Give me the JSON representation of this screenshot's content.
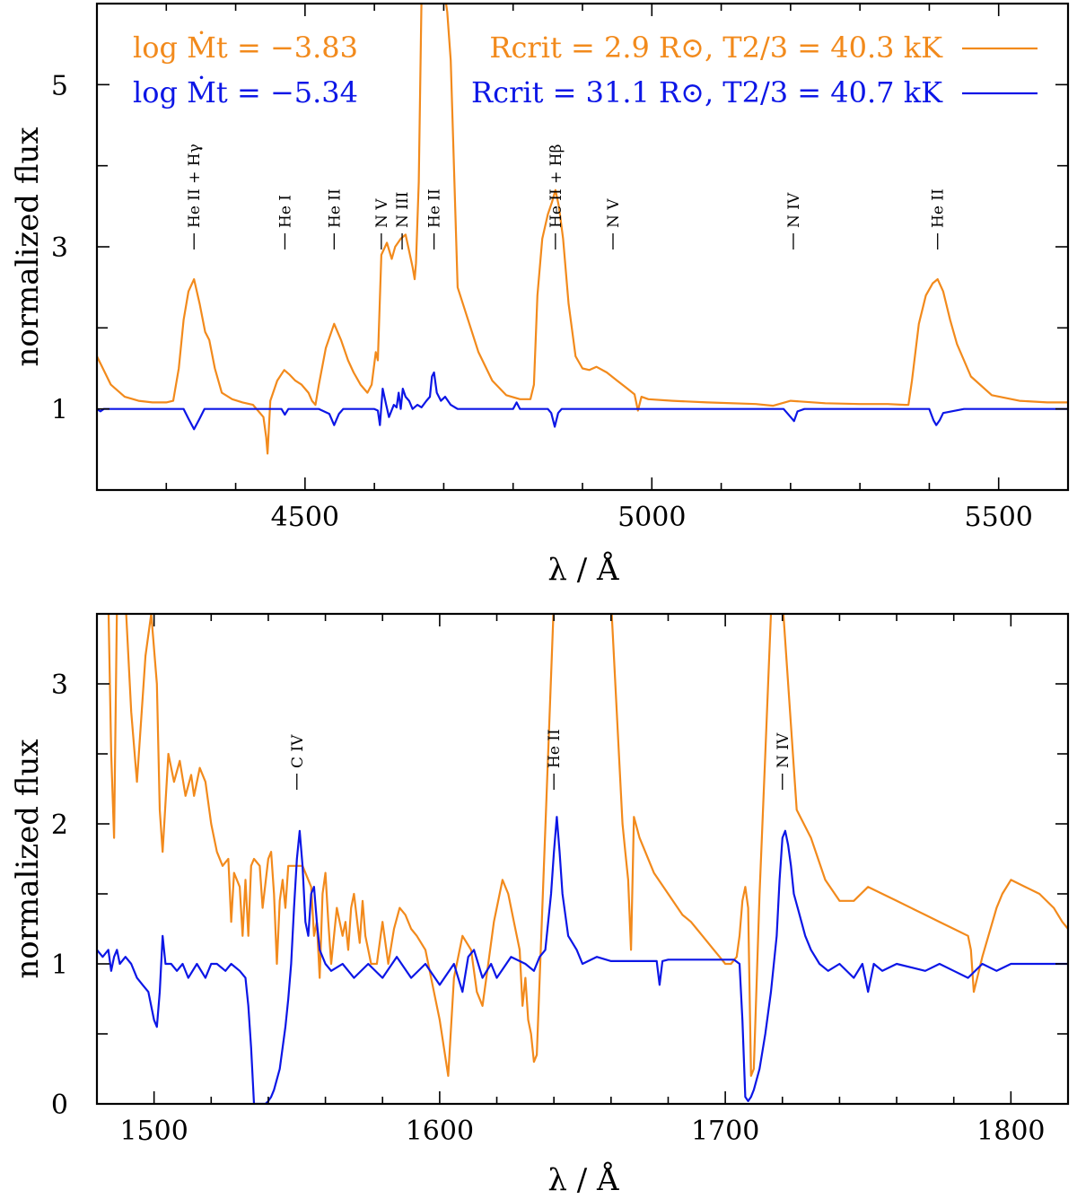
{
  "colors": {
    "orange": "#f28a1c",
    "blue": "#0c16e6",
    "axis": "#000000"
  },
  "chart_data": [
    {
      "type": "line",
      "xlabel": "λ / Å",
      "ylabel": "normalized flux",
      "xlim": [
        4200,
        5600
      ],
      "ylim": [
        0,
        6
      ],
      "xticks": [
        4500,
        5000,
        5500
      ],
      "yticks_labeled": [
        1,
        3,
        5
      ],
      "legend": {
        "lines": [
          {
            "left": "log Ṁt = −3.83",
            "right": "Rcrit = 2.9 R⊙, T2/3 = 40.3 kK",
            "color": "orange"
          },
          {
            "left": "log Ṁt = −5.34",
            "right": "Rcrit = 31.1 R⊙, T2/3 = 40.7 kK",
            "color": "blue"
          }
        ]
      },
      "line_ids": [
        {
          "label": "He II + Hγ",
          "wavelength": 4340
        },
        {
          "label": "He I",
          "wavelength": 4471
        },
        {
          "label": "He II",
          "wavelength": 4542
        },
        {
          "label": "N V",
          "wavelength": 4610
        },
        {
          "label": "N III",
          "wavelength": 4640
        },
        {
          "label": "He II",
          "wavelength": 4686
        },
        {
          "label": "He II + Hβ",
          "wavelength": 4861
        },
        {
          "label": "N V",
          "wavelength": 4944
        },
        {
          "label": "N IV",
          "wavelength": 5204
        },
        {
          "label": "He II",
          "wavelength": 5412
        }
      ],
      "series": [
        {
          "name": "log Ṁt = −3.83",
          "color": "orange",
          "x": [
            4200,
            4220,
            4240,
            4260,
            4280,
            4300,
            4310,
            4318,
            4325,
            4332,
            4340,
            4348,
            4356,
            4362,
            4370,
            4380,
            4395,
            4410,
            4425,
            4440,
            4444,
            4446,
            4450,
            4460,
            4470,
            4478,
            4486,
            4495,
            4505,
            4510,
            4515,
            4520,
            4530,
            4542,
            4552,
            4562,
            4570,
            4580,
            4590,
            4596,
            4602,
            4605,
            4610,
            4618,
            4625,
            4630,
            4638,
            4645,
            4650,
            4655,
            4658,
            4660,
            4664,
            4668,
            4672,
            4675,
            4680,
            4686,
            4692,
            4700,
            4705,
            4710,
            4720,
            4735,
            4750,
            4770,
            4790,
            4810,
            4825,
            4830,
            4835,
            4842,
            4850,
            4856,
            4861,
            4866,
            4872,
            4880,
            4890,
            4900,
            4910,
            4920,
            4935,
            4950,
            4965,
            4975,
            4980,
            4985,
            4995,
            5030,
            5080,
            5150,
            5175,
            5200,
            5250,
            5300,
            5340,
            5365,
            5370,
            5375,
            5385,
            5395,
            5405,
            5412,
            5420,
            5430,
            5440,
            5460,
            5490,
            5530,
            5570,
            5600
          ],
          "values": [
            1.65,
            1.3,
            1.15,
            1.1,
            1.08,
            1.08,
            1.1,
            1.5,
            2.1,
            2.45,
            2.6,
            2.3,
            1.95,
            1.85,
            1.5,
            1.2,
            1.12,
            1.08,
            1.05,
            0.9,
            0.65,
            0.45,
            1.1,
            1.35,
            1.48,
            1.42,
            1.35,
            1.3,
            1.2,
            1.1,
            1.05,
            1.3,
            1.75,
            2.05,
            1.85,
            1.6,
            1.45,
            1.3,
            1.2,
            1.3,
            1.7,
            1.6,
            2.9,
            3.05,
            2.85,
            3.0,
            3.1,
            3.15,
            2.95,
            2.75,
            2.6,
            2.8,
            3.8,
            6.1,
            6.2,
            6.2,
            6.2,
            6.2,
            6.2,
            6.2,
            5.9,
            5.3,
            2.5,
            2.1,
            1.7,
            1.35,
            1.17,
            1.12,
            1.12,
            1.3,
            2.4,
            3.1,
            3.4,
            3.55,
            3.7,
            3.5,
            3.1,
            2.3,
            1.65,
            1.5,
            1.48,
            1.52,
            1.45,
            1.35,
            1.25,
            1.18,
            0.98,
            1.15,
            1.12,
            1.1,
            1.08,
            1.06,
            1.04,
            1.1,
            1.07,
            1.06,
            1.06,
            1.05,
            1.05,
            1.35,
            2.05,
            2.4,
            2.55,
            2.6,
            2.45,
            2.1,
            1.8,
            1.4,
            1.17,
            1.1,
            1.08,
            1.08
          ]
        },
        {
          "name": "log Ṁt = −5.34",
          "color": "blue",
          "x": [
            4200,
            4205,
            4210,
            4300,
            4325,
            4332,
            4340,
            4348,
            4355,
            4440,
            4466,
            4471,
            4476,
            4490,
            4520,
            4535,
            4542,
            4549,
            4555,
            4590,
            4600,
            4605,
            4608,
            4612,
            4617,
            4621,
            4628,
            4632,
            4635,
            4638,
            4641,
            4645,
            4650,
            4655,
            4662,
            4668,
            4675,
            4680,
            4683,
            4686,
            4690,
            4696,
            4702,
            4710,
            4720,
            4800,
            4805,
            4810,
            4815,
            4850,
            4855,
            4860,
            4865,
            4870,
            4950,
            5190,
            5200,
            5205,
            5210,
            5220,
            5400,
            5406,
            5410,
            5415,
            5420,
            5450,
            5600
          ],
          "values": [
            1.0,
            0.97,
            1.0,
            1.0,
            1.0,
            0.88,
            0.75,
            0.88,
            1.0,
            1.0,
            1.0,
            0.93,
            1.0,
            1.0,
            1.0,
            0.94,
            0.8,
            0.94,
            1.0,
            1.0,
            1.0,
            0.98,
            0.8,
            1.25,
            1.05,
            0.9,
            1.05,
            1.02,
            1.2,
            1.0,
            1.25,
            1.15,
            1.1,
            1.0,
            1.05,
            1.02,
            1.1,
            1.15,
            1.4,
            1.45,
            1.2,
            1.1,
            1.15,
            1.05,
            1.0,
            1.0,
            1.08,
            1.0,
            1.0,
            1.0,
            0.95,
            0.78,
            0.95,
            1.0,
            1.0,
            1.0,
            0.9,
            0.85,
            0.97,
            1.0,
            1.0,
            0.86,
            0.8,
            0.86,
            0.95,
            1.0,
            1.0
          ]
        }
      ]
    },
    {
      "type": "line",
      "xlabel": "λ / Å",
      "ylabel": "normalized flux",
      "xlim": [
        1480,
        1820
      ],
      "ylim": [
        0,
        3.5
      ],
      "xticks": [
        1500,
        1600,
        1700,
        1800
      ],
      "yticks_labeled": [
        0,
        1,
        2,
        3
      ],
      "line_ids": [
        {
          "label": "C IV",
          "wavelength": 1550
        },
        {
          "label": "He II",
          "wavelength": 1640
        },
        {
          "label": "N IV",
          "wavelength": 1720
        }
      ],
      "series": [
        {
          "name": "log Ṁt = −3.83",
          "color": "orange",
          "x": [
            1480,
            1484,
            1485,
            1486,
            1487,
            1488,
            1490,
            1492,
            1494,
            1497,
            1499,
            1501,
            1502,
            1503,
            1505,
            1507,
            1509,
            1511,
            1513,
            1514,
            1516,
            1518,
            1520,
            1522,
            1524,
            1526,
            1527,
            1528,
            1530,
            1531,
            1532,
            1533,
            1534,
            1535,
            1537,
            1538,
            1540,
            1541,
            1542,
            1543,
            1544,
            1545,
            1546,
            1547,
            1552,
            1555,
            1556,
            1557,
            1558,
            1559,
            1560,
            1561,
            1562,
            1564,
            1566,
            1567,
            1568,
            1569,
            1570,
            1572,
            1573,
            1574,
            1576,
            1578,
            1580,
            1582,
            1584,
            1586,
            1588,
            1590,
            1592,
            1595,
            1598,
            1600,
            1603,
            1605,
            1608,
            1611,
            1613,
            1615,
            1617,
            1619,
            1620,
            1622,
            1624,
            1626,
            1628,
            1629,
            1630,
            1631,
            1632,
            1633,
            1634,
            1640,
            1660,
            1664,
            1665,
            1666,
            1667,
            1668,
            1670,
            1675,
            1680,
            1685,
            1688,
            1690,
            1692,
            1694,
            1696,
            1698,
            1700,
            1702,
            1704,
            1705,
            1706,
            1707,
            1708,
            1709,
            1710,
            1712,
            1714,
            1716,
            1720,
            1725,
            1730,
            1735,
            1740,
            1745,
            1750,
            1760,
            1770,
            1775,
            1780,
            1785,
            1786,
            1787,
            1790,
            1795,
            1797,
            1800,
            1805,
            1810,
            1815,
            1818,
            1820
          ],
          "values": [
            3.6,
            3.6,
            2.5,
            1.9,
            3.55,
            3.6,
            3.6,
            2.8,
            2.3,
            3.2,
            3.5,
            3.0,
            2.1,
            1.8,
            2.5,
            2.3,
            2.45,
            2.2,
            2.35,
            2.2,
            2.4,
            2.3,
            2.0,
            1.8,
            1.7,
            1.75,
            1.3,
            1.65,
            1.55,
            1.2,
            1.6,
            1.2,
            1.7,
            1.75,
            1.7,
            1.4,
            1.75,
            1.8,
            1.5,
            1.0,
            1.45,
            1.6,
            1.4,
            1.7,
            1.7,
            1.55,
            1.2,
            1.3,
            0.9,
            1.5,
            1.65,
            1.3,
            1.0,
            1.4,
            1.2,
            1.3,
            1.1,
            1.4,
            1.5,
            1.15,
            1.45,
            1.2,
            1.0,
            1.0,
            1.3,
            1.0,
            1.25,
            1.4,
            1.35,
            1.25,
            1.2,
            1.1,
            0.8,
            0.6,
            0.2,
            0.9,
            1.2,
            1.1,
            0.8,
            0.7,
            1.0,
            1.3,
            1.4,
            1.6,
            1.5,
            1.3,
            1.1,
            0.7,
            0.9,
            0.6,
            0.5,
            0.3,
            0.35,
            3.6,
            3.6,
            2.0,
            1.8,
            1.6,
            1.1,
            2.05,
            1.9,
            1.65,
            1.5,
            1.35,
            1.3,
            1.25,
            1.2,
            1.15,
            1.1,
            1.05,
            1.0,
            1.0,
            1.05,
            1.2,
            1.45,
            1.55,
            1.4,
            0.2,
            0.25,
            1.5,
            2.5,
            3.5,
            3.6,
            2.1,
            1.9,
            1.6,
            1.45,
            1.45,
            1.55,
            1.45,
            1.35,
            1.3,
            1.25,
            1.2,
            1.1,
            0.8,
            1.05,
            1.4,
            1.5,
            1.6,
            1.55,
            1.5,
            1.4,
            1.3,
            1.25
          ]
        },
        {
          "name": "log Ṁt = −5.34",
          "color": "blue",
          "x": [
            1480,
            1482,
            1484,
            1485,
            1486,
            1487,
            1488,
            1490,
            1492,
            1494,
            1496,
            1498,
            1500,
            1501,
            1502,
            1503,
            1504,
            1506,
            1508,
            1510,
            1512,
            1515,
            1518,
            1520,
            1522,
            1525,
            1527,
            1530,
            1532,
            1533,
            1534,
            1535,
            1536,
            1537,
            1538,
            1539,
            1540,
            1541,
            1542,
            1544,
            1546,
            1547,
            1548,
            1549,
            1550,
            1551,
            1552,
            1553,
            1554,
            1555,
            1556,
            1557,
            1558,
            1560,
            1562,
            1566,
            1570,
            1575,
            1580,
            1585,
            1590,
            1595,
            1600,
            1605,
            1608,
            1610,
            1612,
            1615,
            1618,
            1620,
            1625,
            1630,
            1633,
            1635,
            1637,
            1639,
            1640,
            1641,
            1642,
            1643,
            1645,
            1648,
            1650,
            1655,
            1660,
            1670,
            1676,
            1677,
            1678,
            1680,
            1690,
            1700,
            1703,
            1705,
            1706,
            1707,
            1708,
            1709,
            1710,
            1712,
            1714,
            1716,
            1718,
            1719,
            1720,
            1721,
            1722,
            1723,
            1724,
            1726,
            1728,
            1730,
            1733,
            1736,
            1740,
            1745,
            1748,
            1750,
            1752,
            1755,
            1760,
            1770,
            1775,
            1780,
            1785,
            1790,
            1795,
            1800,
            1810,
            1820
          ],
          "values": [
            1.1,
            1.05,
            1.1,
            0.95,
            1.05,
            1.1,
            1.0,
            1.05,
            1.0,
            0.9,
            0.85,
            0.8,
            0.6,
            0.55,
            0.8,
            1.2,
            1.0,
            1.0,
            0.95,
            1.0,
            0.9,
            1.0,
            0.9,
            1.0,
            1.0,
            0.95,
            1.0,
            0.95,
            0.9,
            0.7,
            0.4,
            0.0,
            0.0,
            0.0,
            0.0,
            0.0,
            0.02,
            0.05,
            0.1,
            0.25,
            0.55,
            0.75,
            1.0,
            1.4,
            1.75,
            1.95,
            1.7,
            1.3,
            1.2,
            1.5,
            1.55,
            1.3,
            1.1,
            1.0,
            0.95,
            1.0,
            0.9,
            1.0,
            0.9,
            1.05,
            0.9,
            1.0,
            0.85,
            1.0,
            0.8,
            1.05,
            1.1,
            0.9,
            1.0,
            0.9,
            1.05,
            1.0,
            0.95,
            1.05,
            1.1,
            1.5,
            1.8,
            2.05,
            1.8,
            1.5,
            1.2,
            1.1,
            1.0,
            1.05,
            1.02,
            1.02,
            1.02,
            0.85,
            1.02,
            1.03,
            1.03,
            1.03,
            1.03,
            1.0,
            0.6,
            0.05,
            0.02,
            0.05,
            0.1,
            0.25,
            0.5,
            0.8,
            1.2,
            1.6,
            1.9,
            1.95,
            1.85,
            1.7,
            1.5,
            1.35,
            1.2,
            1.1,
            1.0,
            0.95,
            1.0,
            0.9,
            1.0,
            0.8,
            1.0,
            0.95,
            1.0,
            0.95,
            1.0,
            0.95,
            0.9,
            1.0,
            0.95,
            1.0,
            1.0,
            1.0
          ]
        }
      ]
    }
  ]
}
